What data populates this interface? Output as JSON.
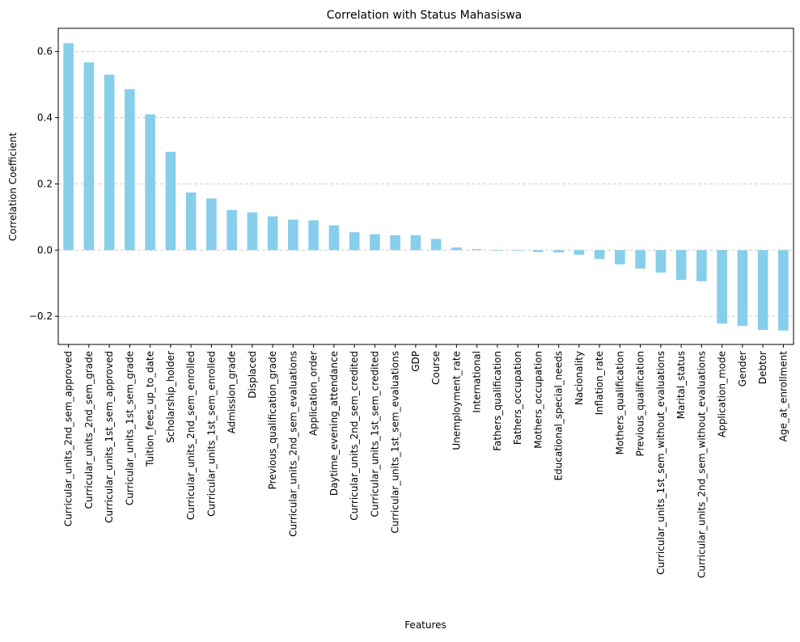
{
  "chart_data": {
    "type": "bar",
    "title": "Correlation with Status Mahasiswa",
    "xlabel": "Features",
    "ylabel": "Correlation Coefficient",
    "ylim": [
      -0.285,
      0.67
    ],
    "yticks": [
      {
        "value": -0.2,
        "label": "−0.2"
      },
      {
        "value": 0.0,
        "label": "0.0"
      },
      {
        "value": 0.2,
        "label": "0.2"
      },
      {
        "value": 0.4,
        "label": "0.4"
      },
      {
        "value": 0.6,
        "label": "0.6"
      }
    ],
    "grid": "horizontal-dashed",
    "bar_color": "#87ceeb",
    "categories": [
      "Curricular_units_2nd_sem_approved",
      "Curricular_units_2nd_sem_grade",
      "Curricular_units_1st_sem_approved",
      "Curricular_units_1st_sem_grade",
      "Tuition_fees_up_to_date",
      "Scholarship_holder",
      "Curricular_units_2nd_sem_enrolled",
      "Curricular_units_1st_sem_enrolled",
      "Admission_grade",
      "Displaced",
      "Previous_qualification_grade",
      "Curricular_units_2nd_sem_evaluations",
      "Application_order",
      "Daytime_evening_attendance",
      "Curricular_units_2nd_sem_credited",
      "Curricular_units_1st_sem_credited",
      "Curricular_units_1st_sem_evaluations",
      "GDP",
      "Course",
      "Unemployment_rate",
      "International",
      "Fathers_qualification",
      "Fathers_occupation",
      "Mothers_occupation",
      "Educational_special_needs",
      "Nacionality",
      "Inflation_rate",
      "Mothers_qualification",
      "Previous_qualification",
      "Curricular_units_1st_sem_without_evaluations",
      "Marital_status",
      "Curricular_units_2nd_sem_without_evaluations",
      "Application_mode",
      "Gender",
      "Debtor",
      "Age_at_enrollment"
    ],
    "values": [
      0.625,
      0.567,
      0.53,
      0.486,
      0.41,
      0.297,
      0.174,
      0.156,
      0.121,
      0.114,
      0.102,
      0.092,
      0.09,
      0.075,
      0.054,
      0.048,
      0.045,
      0.045,
      0.034,
      0.008,
      0.003,
      -0.002,
      -0.002,
      -0.006,
      -0.007,
      -0.014,
      -0.027,
      -0.043,
      -0.056,
      -0.068,
      -0.09,
      -0.094,
      -0.222,
      -0.229,
      -0.241,
      -0.243
    ]
  }
}
